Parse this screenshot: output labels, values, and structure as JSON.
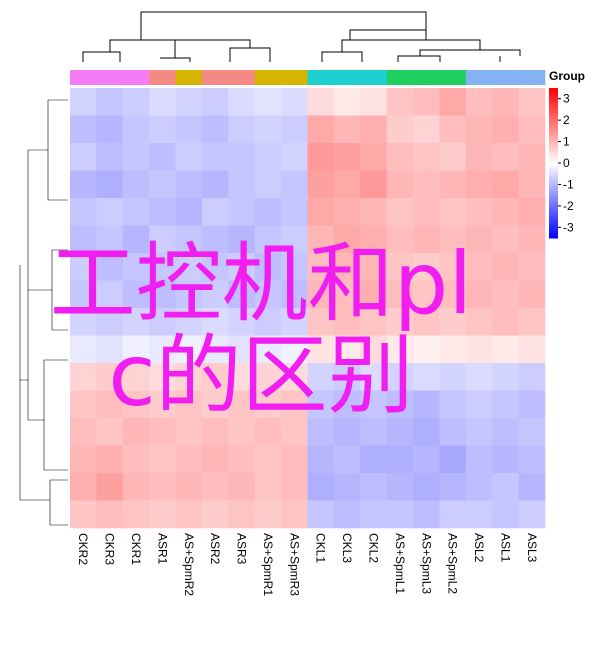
{
  "chart_data": {
    "type": "heatmap",
    "categories": [
      "CKR2",
      "CKR3",
      "CKR1",
      "ASR1",
      "AS+SpmR2",
      "ASR2",
      "ASR3",
      "AS+SpmR1",
      "AS+SpmR3",
      "CKL1",
      "CKL3",
      "CKL2",
      "AS+SpmL1",
      "AS+SpmL3",
      "AS+SpmL2",
      "ASL2",
      "ASL1",
      "ASL3"
    ],
    "column_colors": [
      "#f57cf5",
      "#f57cf5",
      "#f57cf5",
      "#f48a84",
      "#d6b500",
      "#f48a84",
      "#f48a84",
      "#d6b500",
      "#d6b500",
      "#1fd0d0",
      "#1fd0d0",
      "#1fd0d0",
      "#1fcf5f",
      "#1fcf5f",
      "#1fcf5f",
      "#85b2f2",
      "#85b2f2",
      "#85b2f2"
    ],
    "values": [
      [
        -0.6,
        -0.8,
        -0.7,
        -0.5,
        -0.6,
        -0.7,
        -0.5,
        -0.4,
        -0.5,
        0.5,
        0.3,
        0.4,
        0.8,
        0.9,
        1.2,
        0.9,
        1.0,
        0.8
      ],
      [
        -0.9,
        -1.0,
        -0.8,
        -0.7,
        -0.8,
        -0.9,
        -0.7,
        -0.6,
        -0.7,
        1.2,
        1.0,
        1.1,
        0.7,
        0.6,
        0.9,
        1.0,
        1.1,
        0.9
      ],
      [
        -0.7,
        -0.9,
        -0.8,
        -0.9,
        -0.7,
        -0.8,
        -0.8,
        -0.7,
        -0.6,
        1.4,
        1.3,
        1.2,
        0.9,
        0.8,
        0.7,
        1.0,
        0.9,
        1.0
      ],
      [
        -1.0,
        -1.1,
        -0.9,
        -0.8,
        -0.9,
        -1.0,
        -0.8,
        -0.7,
        -0.8,
        1.3,
        1.2,
        1.4,
        1.0,
        0.9,
        1.0,
        1.1,
        1.2,
        1.0
      ],
      [
        -0.8,
        -0.7,
        -0.8,
        -0.9,
        -1.0,
        -0.7,
        -0.8,
        -0.9,
        -0.8,
        1.2,
        1.1,
        1.0,
        0.8,
        0.9,
        0.8,
        0.9,
        1.0,
        1.1
      ],
      [
        -0.9,
        -0.8,
        -1.0,
        -0.7,
        -0.8,
        -0.9,
        -1.0,
        -0.8,
        -0.7,
        1.0,
        1.2,
        1.1,
        0.9,
        1.0,
        0.9,
        1.0,
        0.9,
        1.0
      ],
      [
        -0.7,
        -0.9,
        -0.8,
        -0.8,
        -0.7,
        -0.8,
        -0.7,
        -0.9,
        -0.8,
        0.9,
        1.0,
        1.0,
        0.8,
        0.7,
        0.8,
        0.9,
        1.0,
        0.9
      ],
      [
        -0.8,
        -0.7,
        -0.9,
        -0.9,
        -0.8,
        -0.7,
        -0.9,
        -0.8,
        -0.9,
        1.0,
        0.9,
        1.1,
        0.9,
        0.8,
        0.9,
        1.0,
        0.9,
        1.0
      ],
      [
        -0.6,
        -0.7,
        -0.6,
        -0.7,
        -0.6,
        -0.5,
        -0.6,
        -0.7,
        -0.6,
        0.8,
        0.9,
        0.8,
        0.7,
        0.8,
        0.7,
        0.8,
        0.9,
        0.8
      ],
      [
        -0.3,
        -0.4,
        -0.2,
        -0.3,
        -0.2,
        -0.3,
        -0.4,
        -0.3,
        -0.2,
        0.4,
        0.3,
        0.5,
        0.3,
        0.2,
        0.3,
        0.4,
        0.3,
        0.4
      ],
      [
        0.6,
        0.7,
        0.6,
        0.5,
        0.6,
        0.7,
        0.5,
        0.6,
        0.5,
        -0.6,
        -0.7,
        -0.5,
        -0.6,
        -0.5,
        -0.6,
        -0.5,
        -0.6,
        -0.7
      ],
      [
        0.8,
        0.9,
        0.8,
        0.7,
        0.8,
        0.7,
        0.8,
        0.7,
        0.8,
        -0.8,
        -0.9,
        -0.8,
        -0.9,
        -1.0,
        -0.8,
        -0.7,
        -0.8,
        -0.9
      ],
      [
        0.9,
        0.8,
        1.0,
        0.9,
        0.8,
        0.9,
        0.8,
        0.9,
        0.8,
        -0.9,
        -1.0,
        -0.9,
        -1.0,
        -1.1,
        -0.9,
        -0.8,
        -0.9,
        -0.8
      ],
      [
        1.0,
        1.1,
        0.9,
        0.8,
        0.9,
        1.0,
        0.9,
        0.8,
        0.9,
        -1.0,
        -0.9,
        -1.1,
        -1.1,
        -1.0,
        -1.2,
        -0.9,
        -1.0,
        -0.9
      ],
      [
        1.1,
        1.3,
        1.0,
        0.9,
        1.0,
        0.9,
        1.0,
        0.8,
        0.9,
        -1.1,
        -1.0,
        -0.9,
        -1.0,
        -1.1,
        -1.0,
        -0.9,
        -0.8,
        -1.0
      ],
      [
        0.8,
        0.9,
        0.8,
        0.7,
        0.8,
        0.7,
        0.8,
        0.7,
        0.8,
        -0.8,
        -0.9,
        -0.8,
        -0.8,
        -0.9,
        -0.7,
        -0.7,
        -0.8,
        -0.7
      ]
    ],
    "legend_title": "Group",
    "colorbar_lim": [
      -3.5,
      3.5
    ],
    "colorbar_ticks": [
      3,
      2,
      1,
      0,
      -1,
      -2,
      -3
    ],
    "overlay_text": "工控机和plc的区别"
  }
}
